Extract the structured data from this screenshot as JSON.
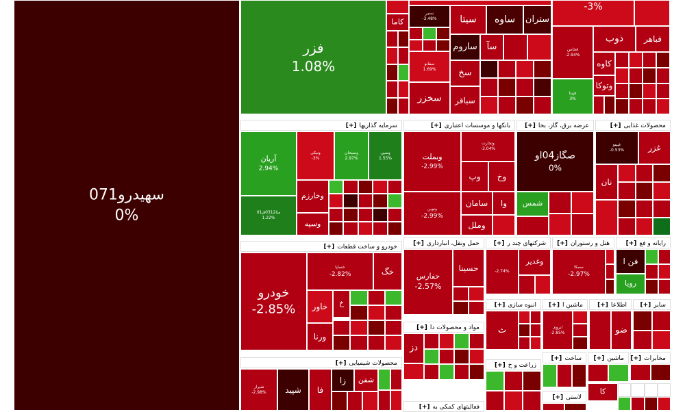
{
  "colors": {
    "dark_maroon": "#3d0000",
    "deep_red": "#7a0000",
    "red": "#b00012",
    "bright_red": "#cc0a1a",
    "green": "#2a9a20",
    "bright_green": "#3cb82c",
    "dark_green": "#0f6e1a"
  },
  "tiles": {
    "sahidro": {
      "name": "سهیدرو071",
      "pct": "0%"
    },
    "fazar": {
      "name": "فزر",
      "pct": "1.08%"
    },
    "kama": {
      "name": "کاما"
    },
    "sita": {
      "name": "سیتا"
    },
    "saveh": {
      "name": "ساوه"
    },
    "setran": {
      "name": "ستران"
    },
    "saroom": {
      "name": "ساروم"
    },
    "sa": {
      "name": "سآ"
    },
    "sakh": {
      "name": "سخ"
    },
    "sakhzar": {
      "name": "سخزر"
    },
    "sabaghar": {
      "name": "سباقر"
    },
    "tiny_a": {
      "name": "سنیر",
      "pct": "-3.48%"
    },
    "tiny_b": {
      "name": "سفانو",
      "pct": "1.69%"
    },
    "top_pct": {
      "pct": "-3%"
    },
    "zob": {
      "name": "ذوب"
    },
    "fabahar": {
      "name": "فباهر"
    },
    "kaveh": {
      "name": "کاوه"
    },
    "vatoka": {
      "name": "وتوکا"
    },
    "fakhoz": {
      "name": "فخاس",
      "pct": "-2.94%"
    },
    "faghani": {
      "name": "فپنتا",
      "pct": "3%"
    },
    "arian": {
      "name": "آریان",
      "pct": "2.94%"
    },
    "vsakhat": {
      "name": "ونیکی",
      "pct": "-3%"
    },
    "vsm": {
      "name": "وسبحان",
      "pct": "2.97%"
    },
    "vsg": {
      "name": "وسین",
      "pct": "1.55%"
    },
    "matin": {
      "name": "مثا0312ق01",
      "pct": "1.22%"
    },
    "vkharazm": {
      "name": "وخارزم"
    },
    "vseph": {
      "name": "وسپه"
    },
    "vbmellat": {
      "name": "وبملت",
      "pct": "-2.99%"
    },
    "vtejarat": {
      "name": "وتجارت",
      "pct": "-3.04%"
    },
    "vokh": {
      "name": "وخ"
    },
    "vop": {
      "name": "وپ"
    },
    "saman": {
      "name": "سامان"
    },
    "vo": {
      "name": "وا"
    },
    "vmellal": {
      "name": "وملل"
    },
    "vnovin": {
      "name": "ونوین",
      "pct": "-2.99%"
    },
    "sgaz": {
      "name": "صگاز04او",
      "pct": "0%"
    },
    "shams": {
      "name": "شمس"
    },
    "ghazar": {
      "name": "غزر"
    },
    "nan": {
      "name": "نان"
    },
    "ghpino": {
      "name": "غپینو",
      "pct": "-0.53%"
    },
    "khodro": {
      "name": "خودرو",
      "pct": "-2.85%"
    },
    "khsapa": {
      "name": "خساپا",
      "pct": "-2.82%"
    },
    "khag": {
      "name": "خگ"
    },
    "khavar": {
      "name": "خاور"
    },
    "kh": {
      "name": "خ"
    },
    "varna": {
      "name": "ورنا"
    },
    "hfaras": {
      "name": "حفارس",
      "pct": "-2.57%"
    },
    "hsina": {
      "name": "حسینا"
    },
    "vghadir": {
      "name": "وغدیر"
    },
    "vghadir_small": {
      "pct": "-2.74%"
    },
    "samka": {
      "name": "سمکا",
      "pct": "-2.97%"
    },
    "fanaf": {
      "name": "فن ا"
    },
    "roya": {
      "name": "رویا"
    },
    "th": {
      "name": "ث"
    },
    "mdz": {
      "name": "دز"
    },
    "shefn": {
      "name": "شفن"
    },
    "shpeid": {
      "name": "شپید"
    },
    "fa": {
      "name": "فا"
    },
    "za": {
      "name": "زا"
    },
    "shiraz": {
      "name": "شیراز",
      "pct": "-2.98%"
    },
    "so": {
      "name": "ضو"
    },
    "ka": {
      "name": "کا"
    },
    "mkhaber_small": {
      "name": "ابروی",
      "pct": "-2.85%"
    }
  },
  "groups": {
    "sarmaye": "سرمایه گذاریها",
    "banks": "بانکها و موسسات اعتباری",
    "barq": "عرضه برق، گاز، بخا",
    "ghazaei": "محصولات غذایی",
    "khodro": "خودرو و ساخت قطعات",
    "haml": "حمل ونقل، انبارداری",
    "chandreshte": "شرکتهای چند ر",
    "hotel": "هتل و رستوران",
    "rayane": "رایانه و فع",
    "anbooh": "انبوه سازی",
    "mashin_a": "ماشین ا",
    "etelaat": "اطلاعا",
    "sayer": "سایر",
    "mavad": "مواد و محصولات دا",
    "shimiyaei": "محصولات شیمیایی",
    "zeraat": "زراعت و خ",
    "sakht": "ساخت",
    "mashin": "ماشین",
    "mokhaberat": "مخابرات",
    "faliat_komaki": "فعالیتهای کمکی به",
    "lastik": "لاستی",
    "plus": "[+]"
  }
}
